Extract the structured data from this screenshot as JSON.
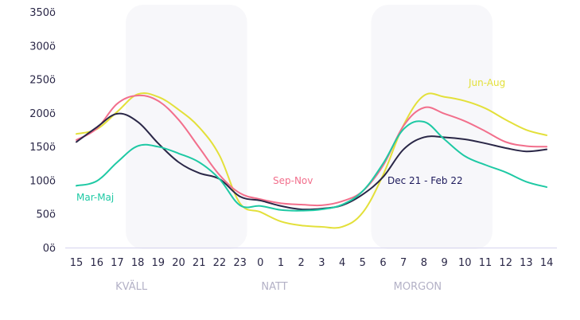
{
  "chart_data": {
    "type": "line",
    "title": "",
    "xlabel": "",
    "ylabel": "",
    "ylim": [
      0,
      350
    ],
    "yticks": [
      0,
      50,
      100,
      150,
      200,
      250,
      300,
      350
    ],
    "ytick_suffix": "ö",
    "grid": false,
    "categories": [
      "15",
      "16",
      "17",
      "18",
      "19",
      "20",
      "21",
      "22",
      "23",
      "0",
      "1",
      "2",
      "3",
      "4",
      "5",
      "6",
      "7",
      "8",
      "9",
      "10",
      "11",
      "12",
      "13",
      "14"
    ],
    "periods": [
      {
        "label": "KVÄLL",
        "from": "18",
        "to": "23",
        "shaded": true,
        "label_at": "18"
      },
      {
        "label": "NATT",
        "from": "0",
        "to": "5",
        "shaded": false,
        "label_at": "1"
      },
      {
        "label": "MORGON",
        "from": "6",
        "to": "11",
        "shaded": true,
        "label_at": "8"
      }
    ],
    "series": [
      {
        "name": "Jun-Aug",
        "color": "#e3e03a",
        "values": [
          170,
          177,
          203,
          229,
          225,
          206,
          180,
          138,
          67,
          54,
          40,
          34,
          32,
          32,
          53,
          109,
          183,
          227,
          225,
          219,
          208,
          191,
          176,
          168
        ]
      },
      {
        "name": "Sep-Nov",
        "color": "#f26f8c",
        "values": [
          161,
          178,
          215,
          227,
          219,
          191,
          150,
          109,
          82,
          73,
          67,
          65,
          64,
          70,
          85,
          123,
          182,
          209,
          200,
          189,
          174,
          158,
          152,
          151
        ]
      },
      {
        "name": "Dec 21 - Feb 22",
        "color": "#2a2747",
        "values": [
          158,
          180,
          200,
          188,
          156,
          128,
          112,
          103,
          77,
          71,
          63,
          58,
          59,
          64,
          80,
          106,
          147,
          165,
          165,
          162,
          156,
          149,
          144,
          147
        ]
      },
      {
        "name": "Mar-Maj",
        "color": "#1ec9a4",
        "values": [
          93,
          100,
          128,
          152,
          151,
          141,
          128,
          103,
          64,
          63,
          57,
          56,
          58,
          65,
          85,
          126,
          177,
          188,
          162,
          137,
          124,
          113,
          99,
          91
        ]
      }
    ]
  }
}
